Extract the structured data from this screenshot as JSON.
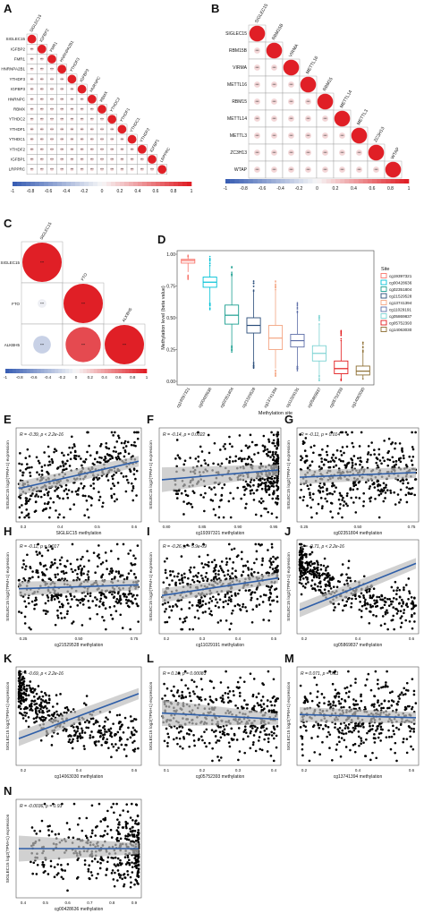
{
  "figure": {
    "letters": [
      "A",
      "B",
      "C",
      "D",
      "E",
      "F",
      "G",
      "H",
      "I",
      "J",
      "K",
      "L",
      "M",
      "N"
    ]
  },
  "colors": {
    "neg": "#3a5fb4",
    "pos": "#e01f26",
    "mid": "#f7f7f7",
    "line": "#2e5ea8",
    "ci": "#bdbdbd",
    "point": "#000000"
  },
  "chart_data": [
    {
      "id": "A",
      "type": "heatmap",
      "title": "",
      "labels": [
        "SIGLEC15",
        "IGFBP2",
        "FMR1",
        "HNRNPA2B1",
        "YTHDF3",
        "IGFBP3",
        "HNRNPC",
        "RBMX",
        "YTHDC2",
        "YTHDF1",
        "YTHDC1",
        "YTHDF2",
        "IGFBP1",
        "LRPPRC"
      ],
      "colorbar_ticks": [
        "-1",
        "-0.8",
        "-0.6",
        "-0.4",
        "-0.2",
        "0",
        "0.2",
        "0.4",
        "0.6",
        "0.8",
        "1"
      ]
    },
    {
      "id": "B",
      "type": "heatmap",
      "title": "",
      "labels": [
        "SIGLEC15",
        "RBM15B",
        "VIRMA",
        "METTL16",
        "RBM15",
        "METTL14",
        "METTL3",
        "ZC3H13",
        "WTAP"
      ],
      "colorbar_ticks": [
        "-1",
        "-0.8",
        "-0.6",
        "-0.4",
        "-0.2",
        "0",
        "0.2",
        "0.4",
        "0.6",
        "0.8",
        "1"
      ]
    },
    {
      "id": "C",
      "type": "heatmap",
      "title": "",
      "labels": [
        "SIGLEC15",
        "FTO",
        "ALKBH5"
      ],
      "colorbar_ticks": [
        "-1",
        "-0.8",
        "-0.6",
        "-0.4",
        "-0.2",
        "0",
        "0.2",
        "0.4",
        "0.6",
        "0.8",
        "1"
      ]
    },
    {
      "id": "D",
      "type": "box",
      "title": "",
      "xlabel": "Methylation site",
      "ylabel": "Methylation level (beta value)",
      "yticks": [
        "0.00",
        "0.25",
        "0.50",
        "0.75",
        "1.00"
      ],
      "ylim": [
        0,
        1
      ],
      "legend_title": "Site",
      "categories": [
        "cg19397321",
        "cg00428636",
        "cg02351804",
        "cg21529528",
        "cg13741394",
        "cg11029191",
        "cg05869837",
        "cg05752393",
        "cg14063030"
      ],
      "colors": [
        "#f8766d",
        "#00c1d6",
        "#1a9e8f",
        "#2a4d7a",
        "#f4a582",
        "#5e6fa8",
        "#7dd3d3",
        "#e31a1c",
        "#8c6d31"
      ],
      "stats": [
        {
          "min": 0.86,
          "q1": 0.93,
          "median": 0.95,
          "q3": 0.96,
          "max": 0.98
        },
        {
          "min": 0.62,
          "q1": 0.74,
          "median": 0.78,
          "q3": 0.82,
          "max": 0.91
        },
        {
          "min": 0.28,
          "q1": 0.45,
          "median": 0.52,
          "q3": 0.6,
          "max": 0.83
        },
        {
          "min": 0.16,
          "q1": 0.38,
          "median": 0.44,
          "q3": 0.5,
          "max": 0.71
        },
        {
          "min": 0.1,
          "q1": 0.25,
          "median": 0.34,
          "q3": 0.44,
          "max": 0.72
        },
        {
          "min": 0.12,
          "q1": 0.27,
          "median": 0.32,
          "q3": 0.37,
          "max": 0.54
        },
        {
          "min": 0.05,
          "q1": 0.16,
          "median": 0.22,
          "q3": 0.28,
          "max": 0.45
        },
        {
          "min": 0.02,
          "q1": 0.06,
          "median": 0.1,
          "q3": 0.16,
          "max": 0.32
        },
        {
          "min": 0.02,
          "q1": 0.05,
          "median": 0.08,
          "q3": 0.12,
          "max": 0.23
        }
      ]
    },
    {
      "id": "E",
      "type": "scatter",
      "stat": "R = -0.39, p < 2.2e-16",
      "xlabel": "SIGLEC15 methylation",
      "ylabel": "SIGLEC15 log2(TPM+1) expression",
      "xticks": [
        "0.3",
        "0.4",
        "0.5",
        "0.6"
      ],
      "slope": -0.7
    },
    {
      "id": "F",
      "type": "scatter",
      "stat": "R = -0.14, p = 0.0022",
      "xlabel": "cg19397321 methylation",
      "ylabel": "SIGLEC15 log2(TPM+1) expression",
      "xticks": [
        "0.80",
        "0.85",
        "0.90",
        "0.95"
      ],
      "slope": -0.25
    },
    {
      "id": "G",
      "type": "scatter",
      "stat": "R = -0.11, p = 0.014",
      "xlabel": "cg02351804 methylation",
      "ylabel": "SIGLEC15 log2(TPM+1) expression",
      "xticks": [
        "0.25",
        "0.50",
        "0.75"
      ],
      "slope": -0.12
    },
    {
      "id": "H",
      "type": "scatter",
      "stat": "R = -0.11, p = 0.017",
      "xlabel": "cg21529528 methylation",
      "ylabel": "SIGLEC15 log2(TPM+1) expression",
      "xticks": [
        "0.25",
        "0.50",
        "0.75"
      ],
      "slope": -0.1
    },
    {
      "id": "I",
      "type": "scatter",
      "stat": "R = -0.26, p = 5.9e-09",
      "xlabel": "cg11029191 methylation",
      "ylabel": "SIGLEC15 log2(TPM+1) expression",
      "xticks": [
        "0.2",
        "0.3",
        "0.4",
        "0.5"
      ],
      "slope": -0.45
    },
    {
      "id": "J",
      "type": "scatter",
      "stat": "R = -0.71, p < 2.2e-16",
      "xlabel": "cg05869837 methylation",
      "ylabel": "SIGLEC15 log2(TPM+1) expression",
      "xticks": [
        "0.2",
        "0.4",
        "0.6"
      ],
      "slope": -1.2
    },
    {
      "id": "K",
      "type": "scatter",
      "stat": "R = -0.69, p < 2.2e-16",
      "xlabel": "cg14063030 methylation",
      "ylabel": "SIGLEC15 log2(TPM+1) expression",
      "xticks": [
        "0.2",
        "0.4",
        "0.6"
      ],
      "slope": -1.1
    },
    {
      "id": "L",
      "type": "scatter",
      "stat": "R = 0.16, p = 0.00083",
      "xlabel": "cg05752393 methylation",
      "ylabel": "SIGLEC15 log2(TPM+1) expression",
      "xticks": [
        "0.1",
        "0.2",
        "0.3",
        "0.4"
      ],
      "slope": 0.15
    },
    {
      "id": "M",
      "type": "scatter",
      "stat": "R = 0.071, p = 0.11",
      "xlabel": "cg13741394 methylation",
      "ylabel": "SIGLEC15 log2(TPM+1) expression",
      "xticks": [
        "0.2",
        "0.4",
        "0.6"
      ],
      "slope": 0.08
    },
    {
      "id": "N",
      "type": "scatter",
      "stat": "R = -0.0036, p = 0.93",
      "xlabel": "cg00428636 methylation",
      "ylabel": "SIGLEC15 log2(TPM+1) expression",
      "xticks": [
        "0.4",
        "0.5",
        "0.6",
        "0.7",
        "0.8",
        "0.9"
      ],
      "slope": 0.0
    }
  ]
}
